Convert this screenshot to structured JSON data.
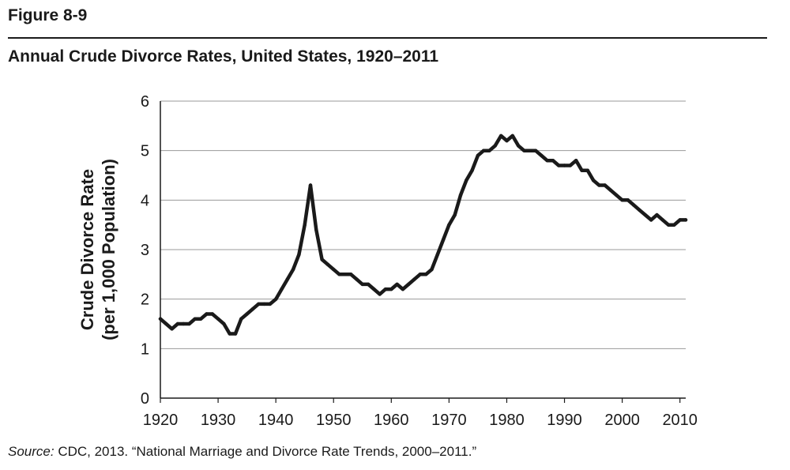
{
  "figure_label": "Figure 8-9",
  "source": {
    "prefix": "Source:",
    "text": " CDC, 2013. “National Marriage and Divorce Rate Trends, 2000–2011.”"
  },
  "chart_data": {
    "type": "line",
    "title": "Annual Crude Divorce Rates, United States, 1920–2011",
    "ylabel_line1": "Crude Divorce Rate",
    "ylabel_line2": "(per 1,000 Population)",
    "xlabel": "",
    "xlim": [
      1920,
      2011
    ],
    "ylim": [
      0,
      6
    ],
    "xticks": [
      1920,
      1930,
      1940,
      1950,
      1960,
      1970,
      1980,
      1990,
      2000,
      2010
    ],
    "yticks": [
      0,
      1,
      2,
      3,
      4,
      5,
      6
    ],
    "grid": "horizontal",
    "legend": "none",
    "line_color": "#1a1a1a",
    "series": [
      {
        "x": [
          1920,
          1921,
          1922,
          1923,
          1924,
          1925,
          1926,
          1927,
          1928,
          1929,
          1930,
          1931,
          1932,
          1933,
          1934,
          1935,
          1936,
          1937,
          1938,
          1939,
          1940,
          1941,
          1942,
          1943,
          1944,
          1945,
          1946,
          1947,
          1948,
          1949,
          1950,
          1951,
          1952,
          1953,
          1954,
          1955,
          1956,
          1957,
          1958,
          1959,
          1960,
          1961,
          1962,
          1963,
          1964,
          1965,
          1966,
          1967,
          1968,
          1969,
          1970,
          1971,
          1972,
          1973,
          1974,
          1975,
          1976,
          1977,
          1978,
          1979,
          1980,
          1981,
          1982,
          1983,
          1984,
          1985,
          1986,
          1987,
          1988,
          1989,
          1990,
          1991,
          1992,
          1993,
          1994,
          1995,
          1996,
          1997,
          1998,
          1999,
          2000,
          2001,
          2002,
          2003,
          2004,
          2005,
          2006,
          2007,
          2008,
          2009,
          2010,
          2011
        ],
        "values": [
          1.6,
          1.5,
          1.4,
          1.5,
          1.5,
          1.5,
          1.6,
          1.6,
          1.7,
          1.7,
          1.6,
          1.5,
          1.3,
          1.3,
          1.6,
          1.7,
          1.8,
          1.9,
          1.9,
          1.9,
          2.0,
          2.2,
          2.4,
          2.6,
          2.9,
          3.5,
          4.3,
          3.4,
          2.8,
          2.7,
          2.6,
          2.5,
          2.5,
          2.5,
          2.4,
          2.3,
          2.3,
          2.2,
          2.1,
          2.2,
          2.2,
          2.3,
          2.2,
          2.3,
          2.4,
          2.5,
          2.5,
          2.6,
          2.9,
          3.2,
          3.5,
          3.7,
          4.1,
          4.4,
          4.6,
          4.9,
          5.0,
          5.0,
          5.1,
          5.3,
          5.2,
          5.3,
          5.1,
          5.0,
          5.0,
          5.0,
          4.9,
          4.8,
          4.8,
          4.7,
          4.7,
          4.7,
          4.8,
          4.6,
          4.6,
          4.4,
          4.3,
          4.3,
          4.2,
          4.1,
          4.0,
          4.0,
          3.9,
          3.8,
          3.7,
          3.6,
          3.7,
          3.6,
          3.5,
          3.5,
          3.6,
          3.6
        ]
      }
    ]
  }
}
